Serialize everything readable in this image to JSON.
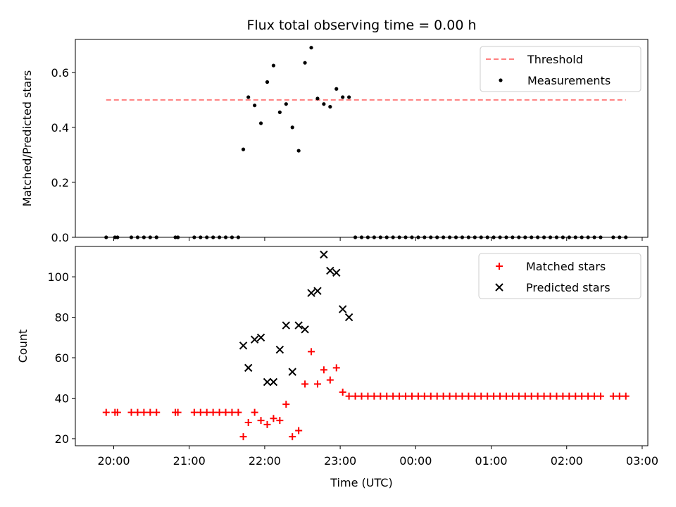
{
  "chart_data": [
    {
      "type": "scatter",
      "title": "Flux total observing time = 0.00 h",
      "ylabel": "Matched/Predicted stars",
      "xlabel": "",
      "xaxis": "time",
      "ylim": [
        0,
        0.72
      ],
      "yticks": [
        0.0,
        0.2,
        0.4,
        0.6
      ],
      "ytick_labels": [
        "0.0",
        "0.2",
        "0.4",
        "0.6"
      ],
      "legend_position": "top-right",
      "legend": [
        "Threshold",
        "Measurements"
      ],
      "threshold": {
        "name": "Threshold",
        "y": 0.5,
        "x_start": "19:54",
        "x_end": "02:47",
        "color": "#ff7f7f"
      },
      "series": [
        {
          "name": "Measurements",
          "marker": "dot",
          "color": "#000000",
          "points": [
            [
              "19:54",
              0.0
            ],
            [
              "20:01",
              0.0
            ],
            [
              "20:03",
              0.0
            ],
            [
              "20:14",
              0.0
            ],
            [
              "20:19",
              0.0
            ],
            [
              "20:24",
              0.0
            ],
            [
              "20:29",
              0.0
            ],
            [
              "20:34",
              0.0
            ],
            [
              "20:34",
              0.0
            ],
            [
              "20:49",
              0.0
            ],
            [
              "20:51",
              0.0
            ],
            [
              "21:04",
              0.0
            ],
            [
              "21:09",
              0.0
            ],
            [
              "21:14",
              0.0
            ],
            [
              "21:19",
              0.0
            ],
            [
              "21:24",
              0.0
            ],
            [
              "21:29",
              0.0
            ],
            [
              "21:34",
              0.0
            ],
            [
              "21:39",
              0.0
            ],
            [
              "21:43",
              0.32
            ],
            [
              "21:47",
              0.51
            ],
            [
              "21:52",
              0.48
            ],
            [
              "21:57",
              0.415
            ],
            [
              "22:02",
              0.565
            ],
            [
              "22:07",
              0.625
            ],
            [
              "22:12",
              0.455
            ],
            [
              "22:17",
              0.485
            ],
            [
              "22:22",
              0.4
            ],
            [
              "22:27",
              0.315
            ],
            [
              "22:32",
              0.635
            ],
            [
              "22:37",
              0.69
            ],
            [
              "22:42",
              0.505
            ],
            [
              "22:47",
              0.485
            ],
            [
              "22:52",
              0.475
            ],
            [
              "22:57",
              0.54
            ],
            [
              "23:02",
              0.51
            ],
            [
              "23:07",
              0.51
            ],
            [
              "23:12",
              0.0
            ],
            [
              "23:17",
              0.0
            ],
            [
              "23:22",
              0.0
            ],
            [
              "23:27",
              0.0
            ],
            [
              "23:32",
              0.0
            ],
            [
              "23:37",
              0.0
            ],
            [
              "23:42",
              0.0
            ],
            [
              "23:47",
              0.0
            ],
            [
              "23:52",
              0.0
            ],
            [
              "23:57",
              0.0
            ],
            [
              "00:02",
              0.0
            ],
            [
              "00:07",
              0.0
            ],
            [
              "00:12",
              0.0
            ],
            [
              "00:17",
              0.0
            ],
            [
              "00:22",
              0.0
            ],
            [
              "00:27",
              0.0
            ],
            [
              "00:32",
              0.0
            ],
            [
              "00:37",
              0.0
            ],
            [
              "00:42",
              0.0
            ],
            [
              "00:47",
              0.0
            ],
            [
              "00:52",
              0.0
            ],
            [
              "00:57",
              0.0
            ],
            [
              "01:02",
              0.0
            ],
            [
              "01:07",
              0.0
            ],
            [
              "01:12",
              0.0
            ],
            [
              "01:17",
              0.0
            ],
            [
              "01:22",
              0.0
            ],
            [
              "01:27",
              0.0
            ],
            [
              "01:32",
              0.0
            ],
            [
              "01:37",
              0.0
            ],
            [
              "01:42",
              0.0
            ],
            [
              "01:47",
              0.0
            ],
            [
              "01:52",
              0.0
            ],
            [
              "01:57",
              0.0
            ],
            [
              "02:02",
              0.0
            ],
            [
              "02:07",
              0.0
            ],
            [
              "02:12",
              0.0
            ],
            [
              "02:17",
              0.0
            ],
            [
              "02:22",
              0.0
            ],
            [
              "02:27",
              0.0
            ],
            [
              "02:37",
              0.0
            ],
            [
              "02:42",
              0.0
            ],
            [
              "02:47",
              0.0
            ]
          ]
        }
      ]
    },
    {
      "type": "scatter",
      "title": "",
      "ylabel": "Count",
      "xlabel": "Time (UTC)",
      "xaxis": "time",
      "ylim": [
        16.5,
        115
      ],
      "yticks": [
        20,
        40,
        60,
        80,
        100
      ],
      "ytick_labels": [
        "20",
        "40",
        "60",
        "80",
        "100"
      ],
      "xticks": [
        "20:00",
        "21:00",
        "22:00",
        "23:00",
        "00:00",
        "01:00",
        "02:00",
        "03:00"
      ],
      "legend_position": "top-right",
      "legend": [
        "Matched stars",
        "Predicted stars"
      ],
      "series": [
        {
          "name": "Matched stars",
          "marker": "plus",
          "color": "#ff0000",
          "points": [
            [
              "19:54",
              33
            ],
            [
              "20:01",
              33
            ],
            [
              "20:03",
              33
            ],
            [
              "20:14",
              33
            ],
            [
              "20:19",
              33
            ],
            [
              "20:24",
              33
            ],
            [
              "20:29",
              33
            ],
            [
              "20:34",
              33
            ],
            [
              "20:49",
              33
            ],
            [
              "20:51",
              33
            ],
            [
              "21:04",
              33
            ],
            [
              "21:09",
              33
            ],
            [
              "21:14",
              33
            ],
            [
              "21:19",
              33
            ],
            [
              "21:24",
              33
            ],
            [
              "21:29",
              33
            ],
            [
              "21:34",
              33
            ],
            [
              "21:39",
              33
            ],
            [
              "21:43",
              21
            ],
            [
              "21:47",
              28
            ],
            [
              "21:52",
              33
            ],
            [
              "21:57",
              29
            ],
            [
              "22:02",
              27
            ],
            [
              "22:07",
              30
            ],
            [
              "22:12",
              29
            ],
            [
              "22:17",
              37
            ],
            [
              "22:22",
              21
            ],
            [
              "22:27",
              24
            ],
            [
              "22:32",
              47
            ],
            [
              "22:37",
              63
            ],
            [
              "22:42",
              47
            ],
            [
              "22:47",
              54
            ],
            [
              "22:52",
              49
            ],
            [
              "22:57",
              55
            ],
            [
              "23:02",
              43
            ],
            [
              "23:07",
              41
            ],
            [
              "23:12",
              41
            ],
            [
              "23:17",
              41
            ],
            [
              "23:22",
              41
            ],
            [
              "23:27",
              41
            ],
            [
              "23:32",
              41
            ],
            [
              "23:37",
              41
            ],
            [
              "23:42",
              41
            ],
            [
              "23:47",
              41
            ],
            [
              "23:52",
              41
            ],
            [
              "23:57",
              41
            ],
            [
              "00:02",
              41
            ],
            [
              "00:07",
              41
            ],
            [
              "00:12",
              41
            ],
            [
              "00:17",
              41
            ],
            [
              "00:22",
              41
            ],
            [
              "00:27",
              41
            ],
            [
              "00:32",
              41
            ],
            [
              "00:37",
              41
            ],
            [
              "00:42",
              41
            ],
            [
              "00:47",
              41
            ],
            [
              "00:52",
              41
            ],
            [
              "00:57",
              41
            ],
            [
              "01:02",
              41
            ],
            [
              "01:07",
              41
            ],
            [
              "01:12",
              41
            ],
            [
              "01:17",
              41
            ],
            [
              "01:22",
              41
            ],
            [
              "01:27",
              41
            ],
            [
              "01:32",
              41
            ],
            [
              "01:37",
              41
            ],
            [
              "01:42",
              41
            ],
            [
              "01:47",
              41
            ],
            [
              "01:52",
              41
            ],
            [
              "01:57",
              41
            ],
            [
              "02:02",
              41
            ],
            [
              "02:07",
              41
            ],
            [
              "02:12",
              41
            ],
            [
              "02:17",
              41
            ],
            [
              "02:22",
              41
            ],
            [
              "02:27",
              41
            ],
            [
              "02:37",
              41
            ],
            [
              "02:42",
              41
            ],
            [
              "02:47",
              41
            ]
          ]
        },
        {
          "name": "Predicted stars",
          "marker": "x",
          "color": "#000000",
          "points": [
            [
              "21:43",
              66
            ],
            [
              "21:47",
              55
            ],
            [
              "21:52",
              69
            ],
            [
              "21:57",
              70
            ],
            [
              "22:02",
              48
            ],
            [
              "22:07",
              48
            ],
            [
              "22:12",
              64
            ],
            [
              "22:17",
              76
            ],
            [
              "22:22",
              53
            ],
            [
              "22:27",
              76
            ],
            [
              "22:32",
              74
            ],
            [
              "22:37",
              92
            ],
            [
              "22:42",
              93
            ],
            [
              "22:47",
              111
            ],
            [
              "22:52",
              103
            ],
            [
              "22:57",
              102
            ],
            [
              "23:02",
              84
            ],
            [
              "23:07",
              80
            ]
          ]
        }
      ]
    }
  ]
}
